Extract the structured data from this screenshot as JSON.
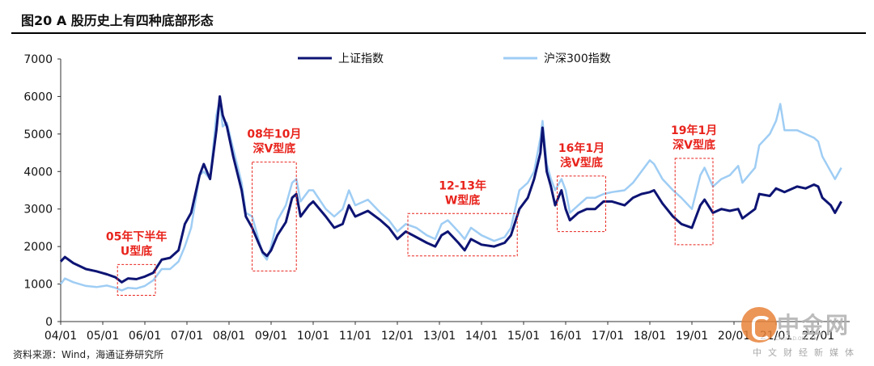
{
  "header": {
    "title": "图20 A 股历史上有四种底部形态"
  },
  "footer": {
    "source": "资料来源：Wind，海通证券研究所"
  },
  "watermark": {
    "name": "中金网",
    "sub": "中文财经新媒体",
    "url": "CNGOLD.ORG.CN",
    "color": "#e8833a"
  },
  "chart_data": {
    "type": "line",
    "x_ticks": [
      "04/01",
      "05/01",
      "06/01",
      "07/01",
      "08/01",
      "09/01",
      "10/01",
      "11/01",
      "12/01",
      "13/01",
      "14/01",
      "15/01",
      "16/01",
      "17/01",
      "18/01",
      "19/01",
      "20/01",
      "21/01",
      "22/01"
    ],
    "ylim": [
      0,
      7000
    ],
    "y_ticks": [
      0,
      1000,
      2000,
      3000,
      4000,
      5000,
      6000,
      7000
    ],
    "legend_position": "top",
    "grid": false,
    "series": [
      {
        "name": "上证指数",
        "color": "#0d1473",
        "points": [
          [
            2004.0,
            1600
          ],
          [
            2004.1,
            1720
          ],
          [
            2004.3,
            1560
          ],
          [
            2004.6,
            1400
          ],
          [
            2004.85,
            1340
          ],
          [
            2005.1,
            1260
          ],
          [
            2005.3,
            1180
          ],
          [
            2005.45,
            1050
          ],
          [
            2005.6,
            1150
          ],
          [
            2005.8,
            1130
          ],
          [
            2006.0,
            1200
          ],
          [
            2006.2,
            1300
          ],
          [
            2006.4,
            1650
          ],
          [
            2006.6,
            1700
          ],
          [
            2006.8,
            1900
          ],
          [
            2006.95,
            2600
          ],
          [
            2007.1,
            2900
          ],
          [
            2007.3,
            3900
          ],
          [
            2007.4,
            4200
          ],
          [
            2007.55,
            3800
          ],
          [
            2007.7,
            5100
          ],
          [
            2007.78,
            6000
          ],
          [
            2007.85,
            5500
          ],
          [
            2007.95,
            5200
          ],
          [
            2008.1,
            4400
          ],
          [
            2008.3,
            3500
          ],
          [
            2008.4,
            2800
          ],
          [
            2008.55,
            2500
          ],
          [
            2008.7,
            2100
          ],
          [
            2008.8,
            1850
          ],
          [
            2008.9,
            1750
          ],
          [
            2009.0,
            1900
          ],
          [
            2009.15,
            2300
          ],
          [
            2009.35,
            2650
          ],
          [
            2009.5,
            3300
          ],
          [
            2009.6,
            3400
          ],
          [
            2009.7,
            2800
          ],
          [
            2009.9,
            3100
          ],
          [
            2010.0,
            3200
          ],
          [
            2010.3,
            2800
          ],
          [
            2010.5,
            2500
          ],
          [
            2010.7,
            2600
          ],
          [
            2010.85,
            3100
          ],
          [
            2011.0,
            2800
          ],
          [
            2011.3,
            2950
          ],
          [
            2011.6,
            2700
          ],
          [
            2011.8,
            2500
          ],
          [
            2012.0,
            2200
          ],
          [
            2012.2,
            2400
          ],
          [
            2012.45,
            2250
          ],
          [
            2012.7,
            2100
          ],
          [
            2012.9,
            2000
          ],
          [
            2013.05,
            2300
          ],
          [
            2013.2,
            2400
          ],
          [
            2013.45,
            2100
          ],
          [
            2013.6,
            1900
          ],
          [
            2013.75,
            2200
          ],
          [
            2014.0,
            2050
          ],
          [
            2014.3,
            2000
          ],
          [
            2014.55,
            2100
          ],
          [
            2014.7,
            2300
          ],
          [
            2014.9,
            3000
          ],
          [
            2015.1,
            3300
          ],
          [
            2015.25,
            3800
          ],
          [
            2015.4,
            4500
          ],
          [
            2015.45,
            5170
          ],
          [
            2015.55,
            4000
          ],
          [
            2015.65,
            3600
          ],
          [
            2015.75,
            3100
          ],
          [
            2015.9,
            3500
          ],
          [
            2016.0,
            3000
          ],
          [
            2016.1,
            2700
          ],
          [
            2016.3,
            2900
          ],
          [
            2016.5,
            3000
          ],
          [
            2016.7,
            3000
          ],
          [
            2016.9,
            3200
          ],
          [
            2017.1,
            3200
          ],
          [
            2017.4,
            3100
          ],
          [
            2017.6,
            3300
          ],
          [
            2017.8,
            3400
          ],
          [
            2018.0,
            3450
          ],
          [
            2018.1,
            3500
          ],
          [
            2018.3,
            3150
          ],
          [
            2018.55,
            2800
          ],
          [
            2018.75,
            2600
          ],
          [
            2019.0,
            2500
          ],
          [
            2019.2,
            3100
          ],
          [
            2019.3,
            3250
          ],
          [
            2019.5,
            2900
          ],
          [
            2019.7,
            3000
          ],
          [
            2019.9,
            2950
          ],
          [
            2020.1,
            3000
          ],
          [
            2020.2,
            2750
          ],
          [
            2020.5,
            3000
          ],
          [
            2020.6,
            3400
          ],
          [
            2020.85,
            3350
          ],
          [
            2021.0,
            3550
          ],
          [
            2021.2,
            3450
          ],
          [
            2021.5,
            3600
          ],
          [
            2021.7,
            3550
          ],
          [
            2021.9,
            3650
          ],
          [
            2022.0,
            3600
          ],
          [
            2022.1,
            3300
          ],
          [
            2022.3,
            3100
          ],
          [
            2022.4,
            2900
          ],
          [
            2022.55,
            3200
          ]
        ]
      },
      {
        "name": "沪深300指数",
        "color": "#9fcdf4",
        "points": [
          [
            2004.0,
            1000
          ],
          [
            2004.1,
            1150
          ],
          [
            2004.3,
            1050
          ],
          [
            2004.6,
            950
          ],
          [
            2004.85,
            920
          ],
          [
            2005.1,
            960
          ],
          [
            2005.3,
            900
          ],
          [
            2005.45,
            830
          ],
          [
            2005.6,
            900
          ],
          [
            2005.8,
            880
          ],
          [
            2006.0,
            950
          ],
          [
            2006.2,
            1100
          ],
          [
            2006.4,
            1400
          ],
          [
            2006.6,
            1400
          ],
          [
            2006.8,
            1600
          ],
          [
            2006.95,
            2000
          ],
          [
            2007.1,
            2500
          ],
          [
            2007.3,
            3900
          ],
          [
            2007.4,
            4000
          ],
          [
            2007.55,
            3800
          ],
          [
            2007.7,
            5500
          ],
          [
            2007.78,
            5900
          ],
          [
            2007.85,
            5200
          ],
          [
            2007.95,
            5300
          ],
          [
            2008.1,
            4600
          ],
          [
            2008.3,
            3700
          ],
          [
            2008.4,
            2900
          ],
          [
            2008.55,
            2800
          ],
          [
            2008.7,
            2200
          ],
          [
            2008.8,
            1800
          ],
          [
            2008.9,
            1650
          ],
          [
            2009.0,
            2000
          ],
          [
            2009.15,
            2700
          ],
          [
            2009.35,
            3100
          ],
          [
            2009.5,
            3700
          ],
          [
            2009.6,
            3800
          ],
          [
            2009.7,
            3200
          ],
          [
            2009.9,
            3500
          ],
          [
            2010.0,
            3500
          ],
          [
            2010.3,
            3000
          ],
          [
            2010.5,
            2800
          ],
          [
            2010.7,
            3000
          ],
          [
            2010.85,
            3500
          ],
          [
            2011.0,
            3100
          ],
          [
            2011.3,
            3250
          ],
          [
            2011.6,
            2900
          ],
          [
            2011.8,
            2700
          ],
          [
            2012.0,
            2400
          ],
          [
            2012.2,
            2600
          ],
          [
            2012.45,
            2500
          ],
          [
            2012.7,
            2300
          ],
          [
            2012.9,
            2200
          ],
          [
            2013.05,
            2600
          ],
          [
            2013.2,
            2700
          ],
          [
            2013.45,
            2400
          ],
          [
            2013.6,
            2200
          ],
          [
            2013.75,
            2500
          ],
          [
            2014.0,
            2300
          ],
          [
            2014.3,
            2150
          ],
          [
            2014.55,
            2250
          ],
          [
            2014.7,
            2500
          ],
          [
            2014.9,
            3500
          ],
          [
            2015.1,
            3700
          ],
          [
            2015.25,
            4000
          ],
          [
            2015.4,
            4900
          ],
          [
            2015.45,
            5350
          ],
          [
            2015.55,
            4200
          ],
          [
            2015.65,
            3800
          ],
          [
            2015.75,
            3500
          ],
          [
            2015.9,
            3800
          ],
          [
            2016.0,
            3500
          ],
          [
            2016.1,
            2900
          ],
          [
            2016.3,
            3100
          ],
          [
            2016.5,
            3300
          ],
          [
            2016.7,
            3300
          ],
          [
            2016.9,
            3400
          ],
          [
            2017.1,
            3450
          ],
          [
            2017.4,
            3500
          ],
          [
            2017.6,
            3700
          ],
          [
            2017.8,
            4000
          ],
          [
            2018.0,
            4300
          ],
          [
            2018.1,
            4200
          ],
          [
            2018.3,
            3800
          ],
          [
            2018.55,
            3500
          ],
          [
            2018.75,
            3300
          ],
          [
            2019.0,
            3000
          ],
          [
            2019.2,
            3900
          ],
          [
            2019.3,
            4100
          ],
          [
            2019.5,
            3600
          ],
          [
            2019.7,
            3800
          ],
          [
            2019.9,
            3900
          ],
          [
            2020.1,
            4150
          ],
          [
            2020.2,
            3700
          ],
          [
            2020.5,
            4100
          ],
          [
            2020.6,
            4700
          ],
          [
            2020.85,
            5000
          ],
          [
            2021.0,
            5350
          ],
          [
            2021.1,
            5800
          ],
          [
            2021.2,
            5100
          ],
          [
            2021.5,
            5100
          ],
          [
            2021.7,
            5000
          ],
          [
            2021.9,
            4900
          ],
          [
            2022.0,
            4800
          ],
          [
            2022.1,
            4400
          ],
          [
            2022.3,
            4000
          ],
          [
            2022.4,
            3800
          ],
          [
            2022.55,
            4100
          ]
        ]
      }
    ],
    "annotations": [
      {
        "label_lines": [
          "05年下半年",
          "U型底"
        ],
        "x_range": [
          2005.35,
          2006.25
        ],
        "y_range": [
          700,
          1520
        ]
      },
      {
        "label_lines": [
          "08年10月",
          "深V型底"
        ],
        "x_range": [
          2008.55,
          2009.6
        ],
        "y_range": [
          1350,
          4250
        ]
      },
      {
        "label_lines": [
          "12-13年",
          "W型底"
        ],
        "x_range": [
          2012.25,
          2014.85
        ],
        "y_range": [
          1750,
          2880
        ]
      },
      {
        "label_lines": [
          "16年1月",
          "浅V型底"
        ],
        "x_range": [
          2015.8,
          2016.95
        ],
        "y_range": [
          2400,
          3880
        ]
      },
      {
        "label_lines": [
          "19年1月",
          "深V型底"
        ],
        "x_range": [
          2018.6,
          2019.5
        ],
        "y_range": [
          2050,
          4350
        ]
      }
    ],
    "annotation_color": "#e8231c"
  }
}
